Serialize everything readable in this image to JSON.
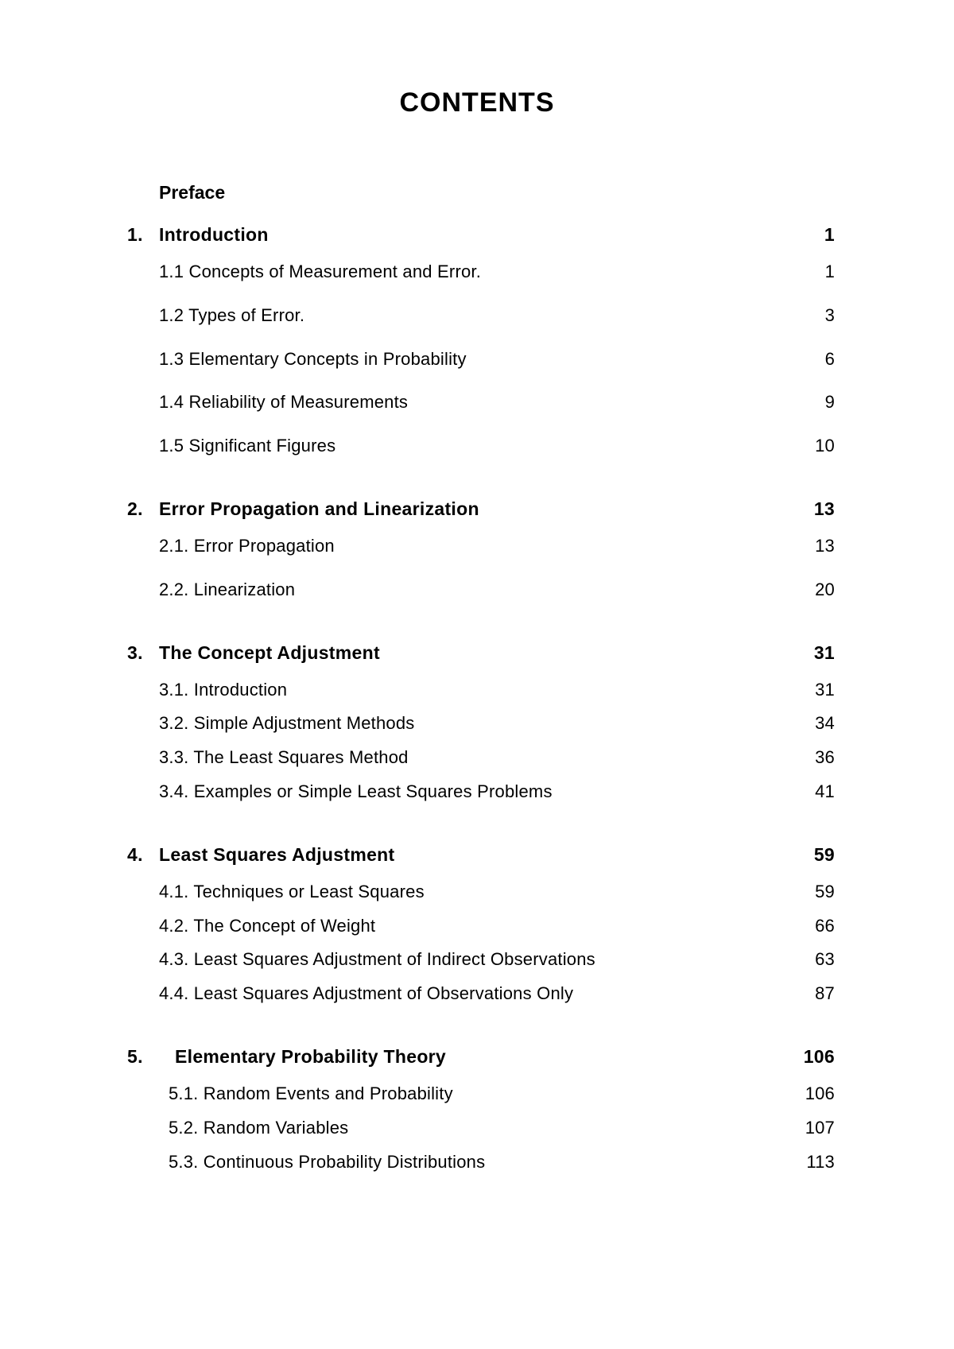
{
  "title": "CONTENTS",
  "preface": "Preface",
  "chapters": [
    {
      "num": "1.",
      "title": "Introduction",
      "page": "1",
      "sections": [
        {
          "label": "1.1 Concepts of Measurement and Error.",
          "page": "1"
        },
        {
          "label": "1.2 Types of Error.",
          "page": "3"
        },
        {
          "label": "1.3 Elementary Concepts in Probability",
          "page": "6"
        },
        {
          "label": "1.4 Reliability of Measurements",
          "page": "9"
        },
        {
          "label": "1.5 Significant Figures",
          "page": "10"
        }
      ]
    },
    {
      "num": "2.",
      "title": "Error Propagation and Linearization",
      "page": "13",
      "sections": [
        {
          "label": "2.1. Error Propagation",
          "page": "13"
        },
        {
          "label": "2.2. Linearization",
          "page": "20"
        }
      ]
    },
    {
      "num": "3.",
      "title": "The Concept Adjustment",
      "page": "31",
      "sections": [
        {
          "label": "3.1. Introduction",
          "page": "31"
        },
        {
          "label": "3.2. Simple Adjustment Methods",
          "page": "34"
        },
        {
          "label": "3.3. The Least Squares Method",
          "page": "36"
        },
        {
          "label": "3.4. Examples or Simple Least Squares Problems",
          "page": "41"
        }
      ]
    },
    {
      "num": "4.",
      "title": "Least Squares Adjustment",
      "page": "59",
      "sections": [
        {
          "label": "4.1. Techniques or Least Squares",
          "page": "59"
        },
        {
          "label": "4.2. The Concept of Weight",
          "page": "66"
        },
        {
          "label": "4.3. Least Squares Adjustment of Indirect Observations",
          "page": "63"
        },
        {
          "label": "4.4. Least Squares Adjustment of Observations Only",
          "page": "87"
        }
      ]
    },
    {
      "num": "5.",
      "title": "Elementary Probability Theory",
      "page": "106",
      "sections": [
        {
          "label": "5.1. Random Events and Probability",
          "page": "106"
        },
        {
          "label": "5.2.  Random Variables",
          "page": "107"
        },
        {
          "label": "5.3.  Continuous Probability Distributions",
          "page": "113"
        }
      ]
    }
  ],
  "style": {
    "background_color": "#ffffff",
    "text_color": "#000000",
    "title_fontsize": 34,
    "heading_fontsize": 23,
    "body_fontsize": 22,
    "font_family": "Arial, Helvetica, sans-serif"
  }
}
